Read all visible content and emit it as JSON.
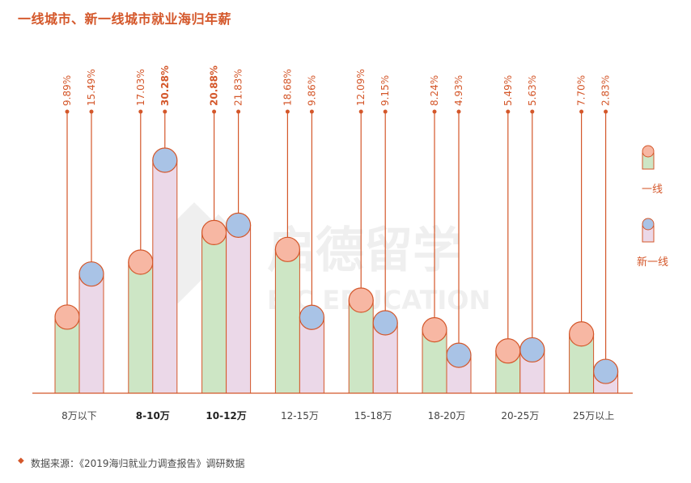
{
  "title": "一线城市、新一线城市就业海归年薪",
  "source": "数据来源：《2019海归就业力调查报告》调研数据",
  "watermark": {
    "cn": "启德留学",
    "en": "EIC EDUCATION"
  },
  "colors": {
    "accent": "#D4572A",
    "tier1_bar": "#CDE6C5",
    "tier1_circle": "#F7B7A3",
    "newtier1_bar": "#EBD8E8",
    "newtier1_circle": "#A9C3E6"
  },
  "chart_data": {
    "type": "bar",
    "title": "一线城市、新一线城市就业海归年薪",
    "categories": [
      "8万以下",
      "8-10万",
      "10-12万",
      "12-15万",
      "15-18万",
      "18-20万",
      "20-25万",
      "25万以上"
    ],
    "bold_categories": [
      1,
      2
    ],
    "series": [
      {
        "name": "一线",
        "values": [
          9.89,
          17.03,
          20.88,
          18.68,
          12.09,
          8.24,
          5.49,
          7.7
        ],
        "labels": [
          "9.89%",
          "17.03%",
          "20.88%",
          "18.68%",
          "12.09%",
          "8.24%",
          "5.49%",
          "7.70%"
        ]
      },
      {
        "name": "新一线",
        "values": [
          15.49,
          30.28,
          21.83,
          9.86,
          9.15,
          4.93,
          5.63,
          2.83
        ],
        "labels": [
          "15.49%",
          "30.28%",
          "21.83%",
          "9.86%",
          "9.15%",
          "4.93%",
          "5.63%",
          "2.83%"
        ]
      }
    ],
    "highlight": [
      {
        "series": 0,
        "index": 2
      },
      {
        "series": 1,
        "index": 1
      }
    ],
    "legend_position": "right",
    "grid": false
  }
}
